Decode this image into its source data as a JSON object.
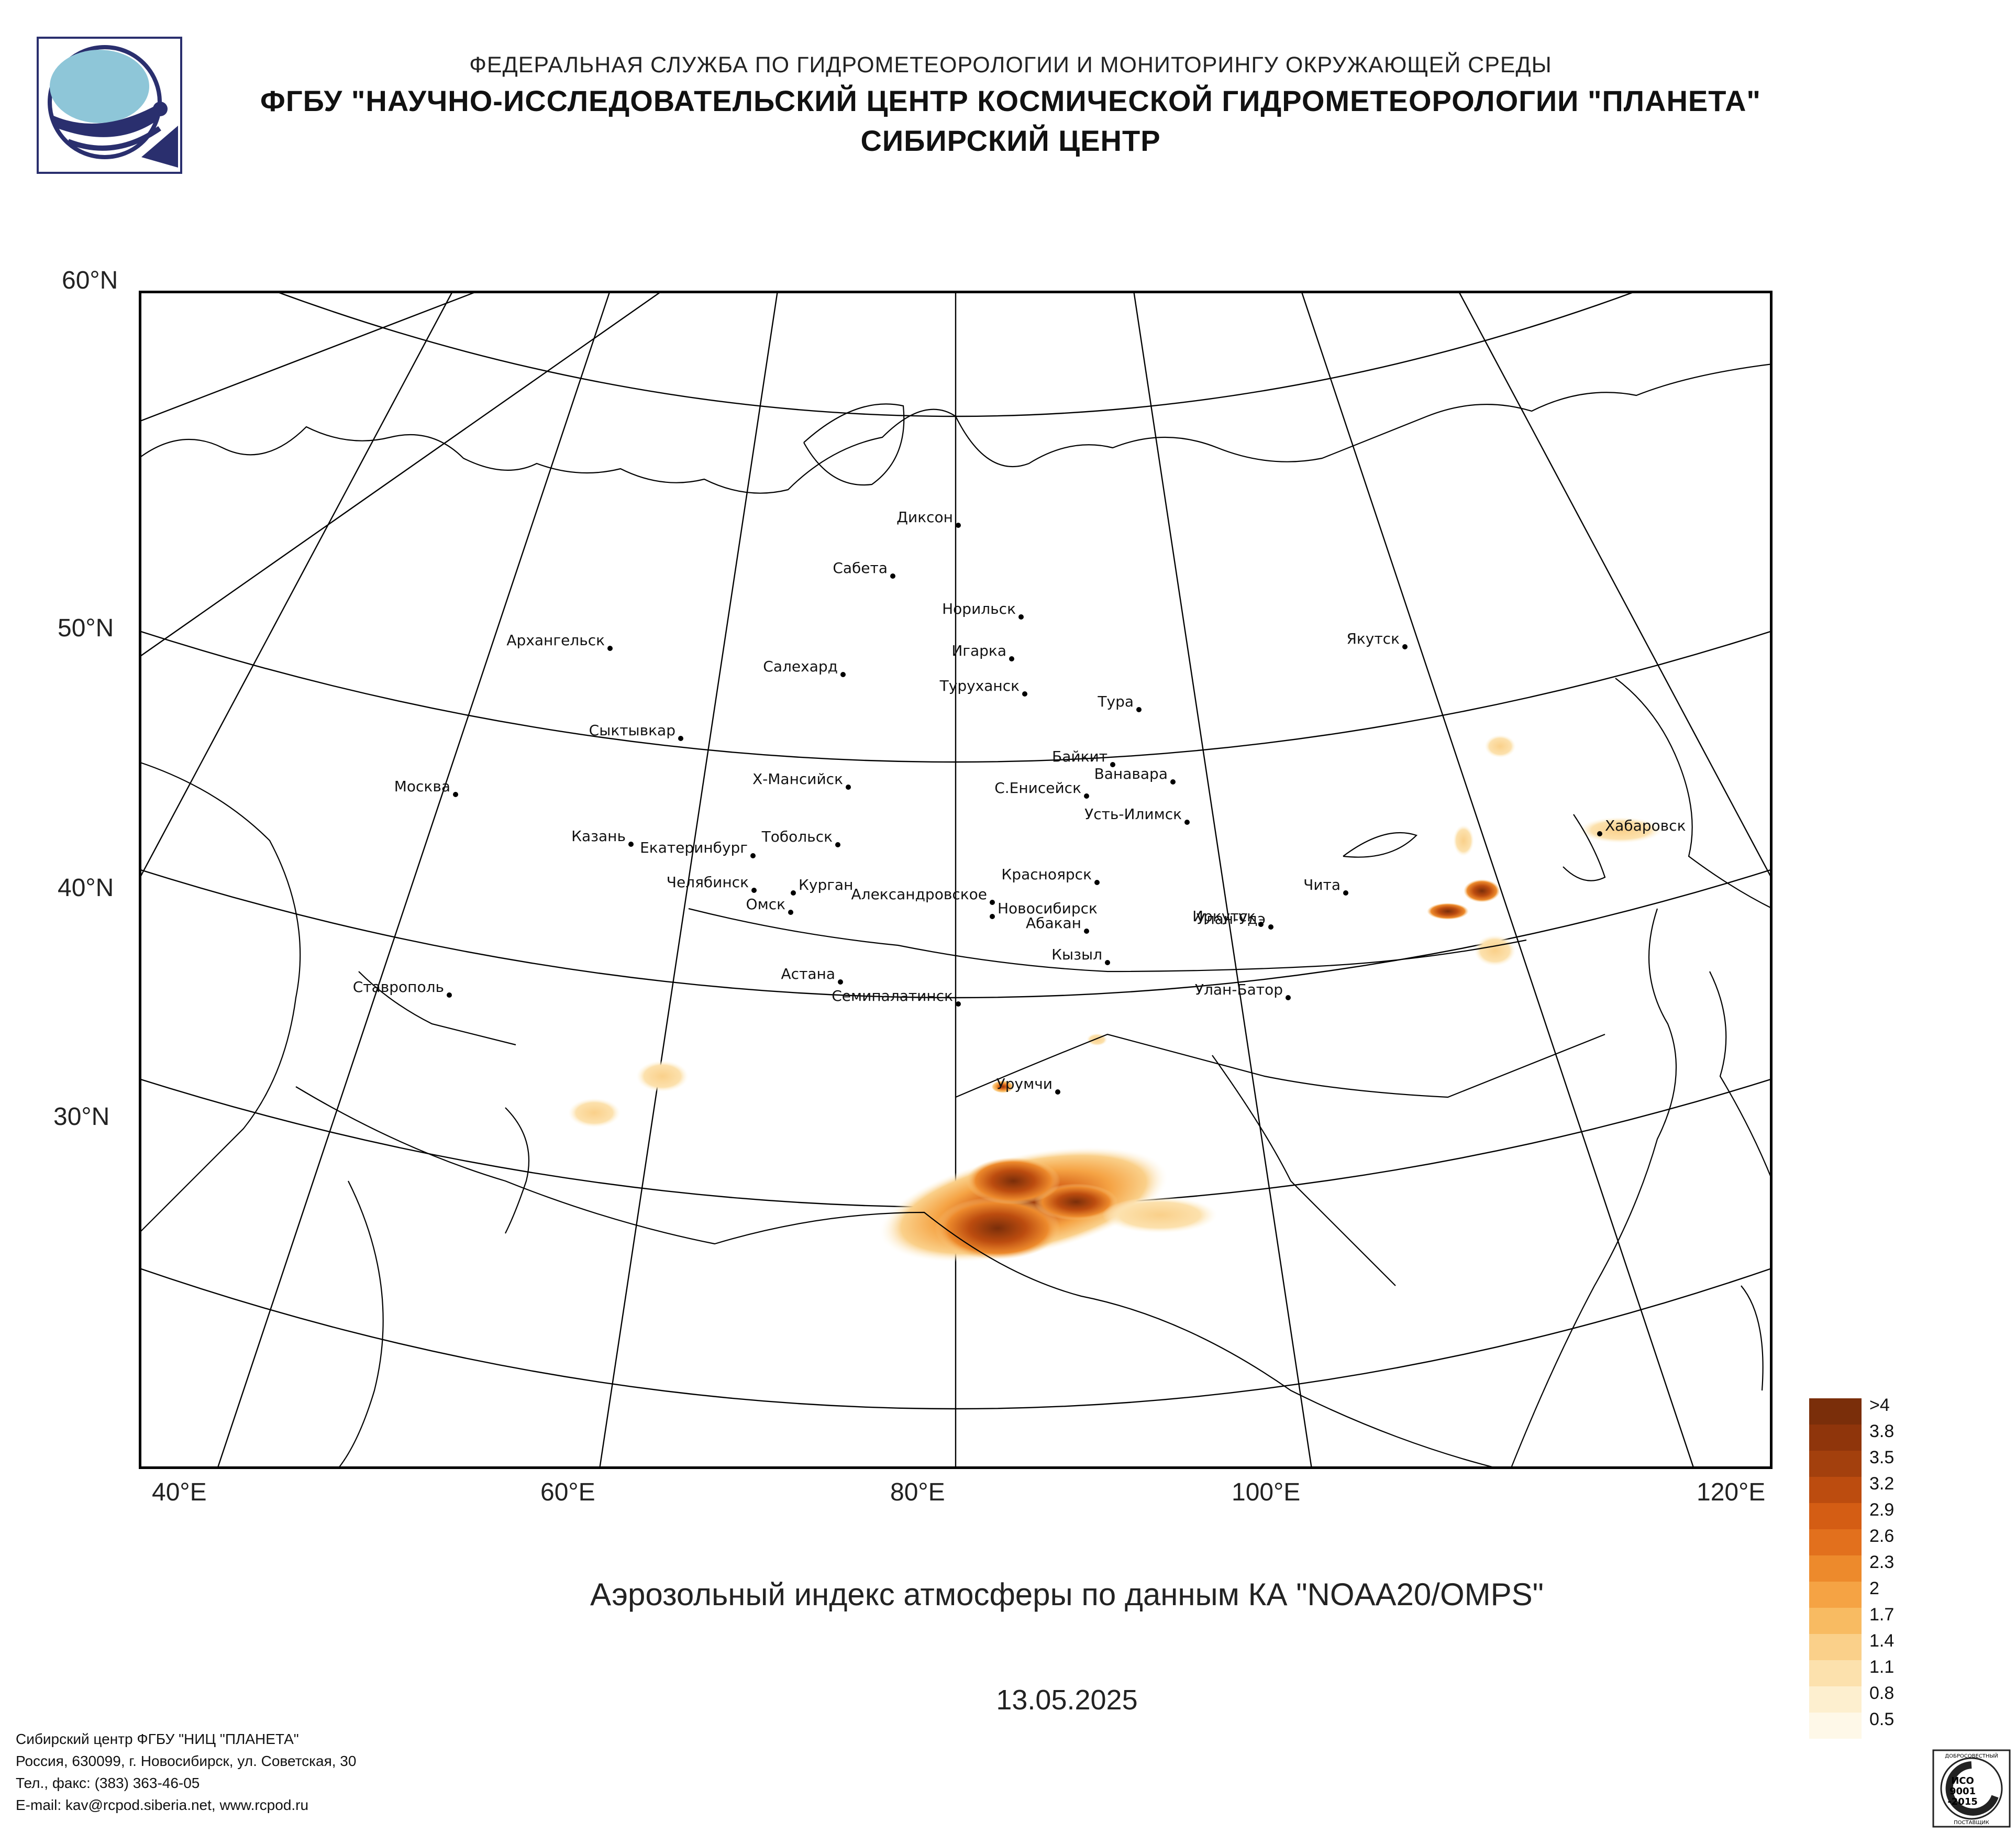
{
  "header": {
    "line1": "ФЕДЕРАЛЬНАЯ СЛУЖБА ПО ГИДРОМЕТЕОРОЛОГИИ И МОНИТОРИНГУ ОКРУЖАЮЩЕЙ СРЕДЫ",
    "line2": "ФГБУ \"НАУЧНО-ИССЛЕДОВАТЕЛЬСКИЙ ЦЕНТР КОСМИЧЕСКОЙ ГИДРОМЕТЕОРОЛОГИИ \"ПЛАНЕТА\"",
    "line3": "СИБИРСКИЙ ЦЕНТР"
  },
  "map": {
    "lat_labels": [
      "60°N",
      "50°N",
      "40°N",
      "30°N"
    ],
    "lon_labels": [
      "40°E",
      "60°E",
      "80°E",
      "100°E",
      "120°E"
    ],
    "cities": [
      "Диксон",
      "Сабета",
      "Норильск",
      "Игарка",
      "Салехард",
      "Туруханск",
      "Якутск",
      "Архангельск",
      "Тура",
      "Сыктывкар",
      "Байкит",
      "Ванавара",
      "Х-Мансийск",
      "С.Енисейск",
      "Москва",
      "Усть-Илимск",
      "Хабаровск",
      "Казань",
      "Тобольск",
      "Екатеринбург",
      "Красноярск",
      "Челябинск",
      "Чита",
      "Александровское",
      "Курган",
      "Омск",
      "Улан-Удэ",
      "Новосибирск",
      "Абакан",
      "Иркутск",
      "Кызыл",
      "Астана",
      "Ставрополь",
      "Семипалатинск",
      "Улан-Батор",
      "Урумчи"
    ],
    "colors": {
      "land_line": "#000000",
      "grid_line": "#000000",
      "frame": "#000000",
      "background": "#ffffff"
    }
  },
  "caption": "Аэрозольный индекс атмосферы по данным КА \"NOAA20/OMPS\"",
  "date": "13.05.2025",
  "colorscale": {
    "labels": [
      ">4",
      "3.8",
      "3.5",
      "3.2",
      "2.9",
      "2.6",
      "2.3",
      "2",
      "1.7",
      "1.4",
      "1.1",
      "0.8",
      "0.5"
    ],
    "colors": [
      "#7a2e0a",
      "#8f350b",
      "#a3400d",
      "#bc4c0f",
      "#d45d14",
      "#e2701d",
      "#ed8a2c",
      "#f5a344",
      "#f8bb62",
      "#fad08a",
      "#fce1ad",
      "#fdefcf",
      "#fef8e8"
    ]
  },
  "footer": {
    "line1": "Сибирский центр ФГБУ \"НИЦ \"ПЛАНЕТА\"",
    "line2": "Россия, 630099, г. Новосибирск, ул. Советская, 30",
    "line3": "Тел., факс: (383) 363-46-05",
    "line4": "E-mail: kav@rcpod.siberia.net, www.rcpod.ru"
  },
  "badge": {
    "line1": "ИСО",
    "line2": "9001",
    "line3": "-2015",
    "top_text": "ДОБРОСОВЕСТНЫЙ",
    "bottom_text": "ПОСТАВЩИК"
  }
}
